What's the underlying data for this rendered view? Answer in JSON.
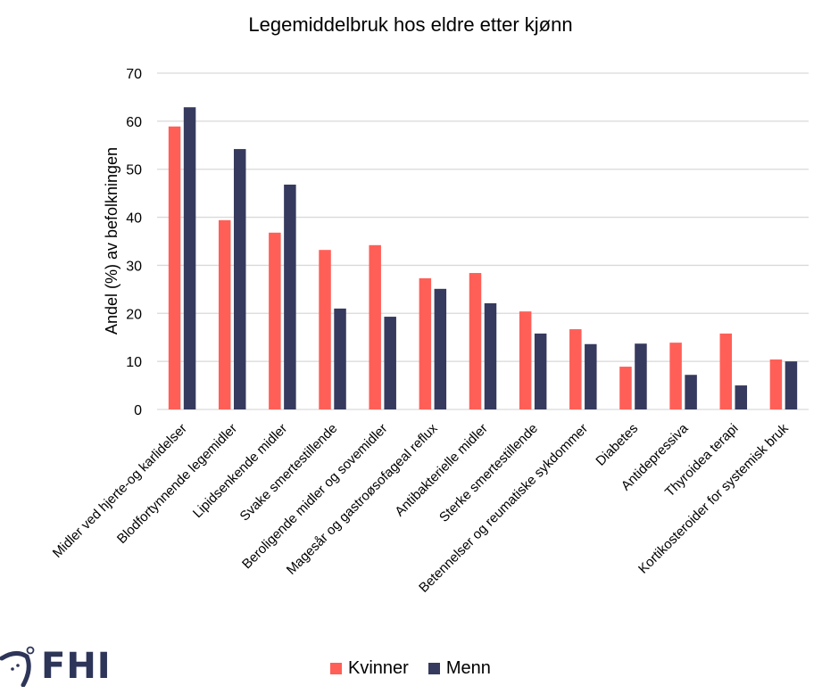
{
  "chart_data": {
    "type": "bar",
    "title": "Legemiddelbruk hos eldre etter kjønn",
    "xlabel": "",
    "ylabel": "Andel (%) av befolkningen",
    "ylim": [
      0,
      70
    ],
    "yticks": [
      0,
      10,
      20,
      30,
      40,
      50,
      60,
      70
    ],
    "grid": true,
    "legend_position": "bottom",
    "categories": [
      "Midler ved hjerte-og karlidelser",
      "Blodfortynnende legemidler",
      "Lipidsenkende midler",
      "Svake smertestillende",
      "Beroligende midler og sovemidler",
      "Magesår og gastroøsofageal reflux",
      "Antibakterielle midler",
      "Sterke smertestillende",
      "Betennelser og reumatiske sykdommer",
      "Diabetes",
      "Antidepressiva",
      "Thyroidea terapi",
      "Kortikosteroider for systemisk bruk"
    ],
    "series": [
      {
        "name": "Kvinner",
        "color": "#ff5f57",
        "values": [
          58.9,
          39.4,
          36.8,
          33.2,
          34.2,
          27.3,
          28.4,
          20.4,
          16.7,
          8.9,
          13.9,
          15.8,
          10.4
        ]
      },
      {
        "name": "Menn",
        "color": "#363a5e",
        "values": [
          62.9,
          54.2,
          46.8,
          21.0,
          19.3,
          25.1,
          22.1,
          15.8,
          13.6,
          13.7,
          7.2,
          5.0,
          10.0
        ]
      }
    ]
  },
  "logo": {
    "text": "FHI",
    "color": "#2d3558"
  }
}
